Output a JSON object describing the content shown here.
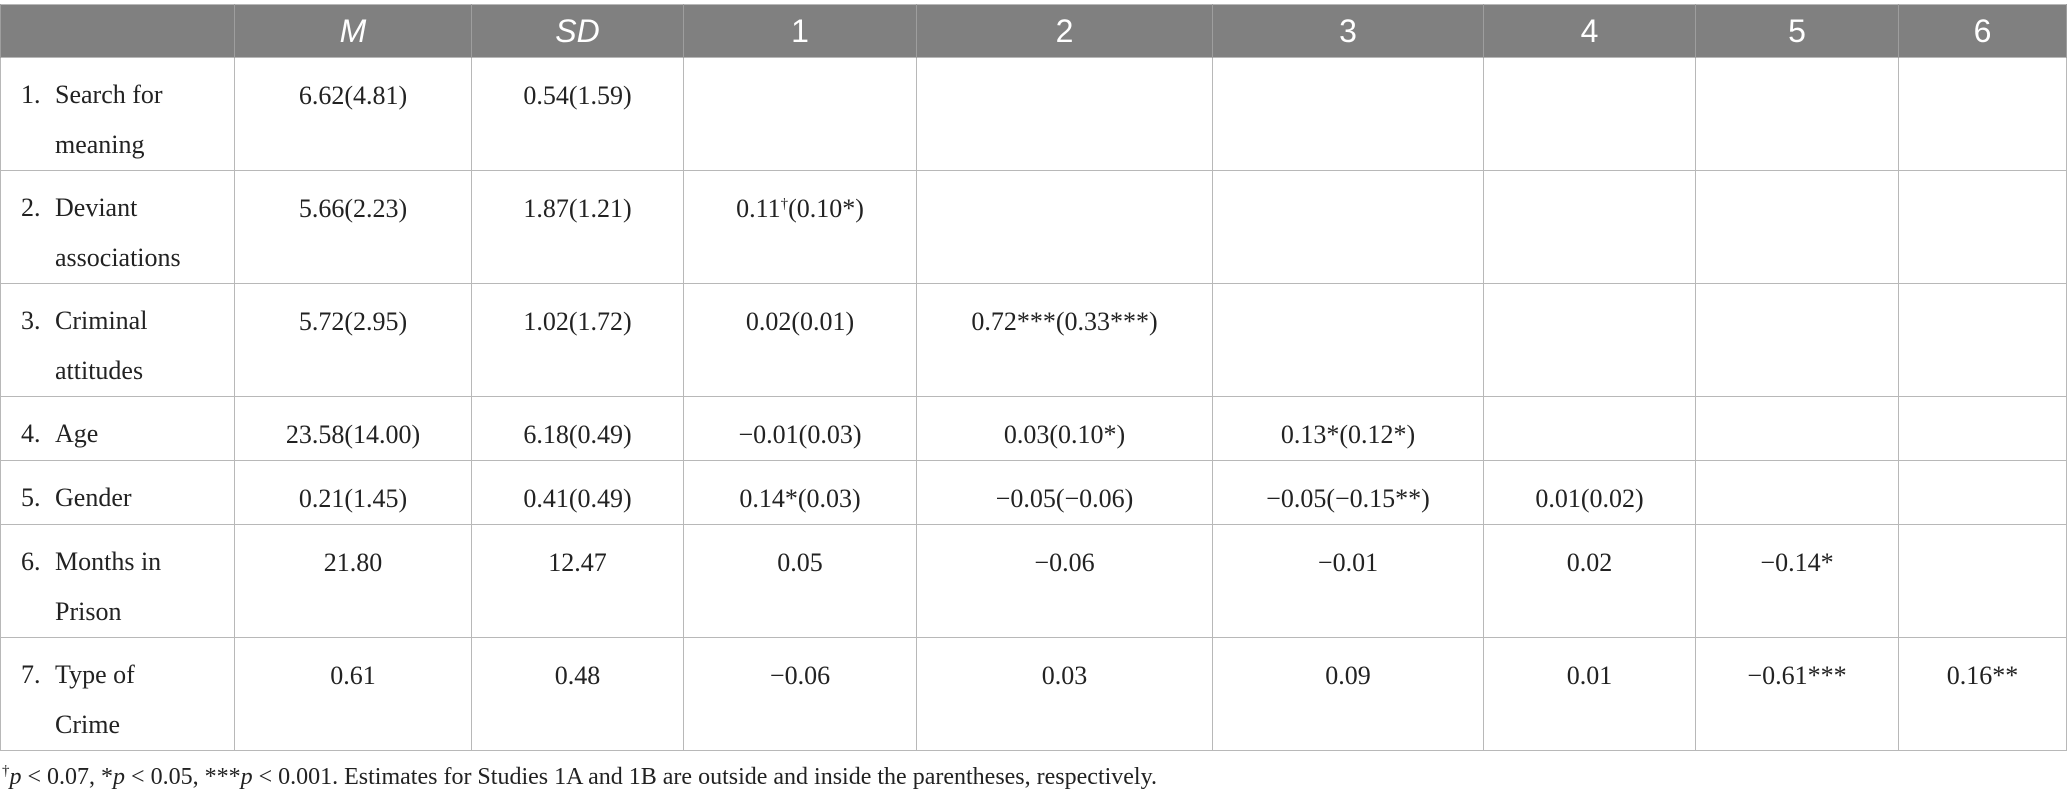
{
  "table": {
    "headers": [
      "",
      "M",
      "SD",
      "1",
      "2",
      "3",
      "4",
      "5",
      "6"
    ],
    "rows": [
      {
        "num": "1.",
        "label": "Search for meaning",
        "cells": [
          "6.62(4.81)",
          "0.54(1.59)",
          "",
          "",
          "",
          "",
          "",
          ""
        ]
      },
      {
        "num": "2.",
        "label": "Deviant associations",
        "cells": [
          "5.66(2.23)",
          "1.87(1.21)",
          "0.11†(0.10*)",
          "",
          "",
          "",
          "",
          ""
        ]
      },
      {
        "num": "3.",
        "label": "Criminal attitudes",
        "cells": [
          "5.72(2.95)",
          "1.02(1.72)",
          "0.02(0.01)",
          "0.72***(0.33***)",
          "",
          "",
          "",
          ""
        ]
      },
      {
        "num": "4.",
        "label": "Age",
        "cells": [
          "23.58(14.00)",
          "6.18(0.49)",
          "−0.01(0.03)",
          "0.03(0.10*)",
          "0.13*(0.12*)",
          "",
          "",
          ""
        ]
      },
      {
        "num": "5.",
        "label": "Gender",
        "cells": [
          "0.21(1.45)",
          "0.41(0.49)",
          "0.14*(0.03)",
          "−0.05(−0.06)",
          "−0.05(−0.15**)",
          "0.01(0.02)",
          "",
          ""
        ]
      },
      {
        "num": "6.",
        "label": "Months in Prison",
        "cells": [
          "21.80",
          "12.47",
          "0.05",
          "−0.06",
          "−0.01",
          "0.02",
          "−0.14*",
          ""
        ]
      },
      {
        "num": "7.",
        "label": "Type of Crime",
        "cells": [
          "0.61",
          "0.48",
          "−0.06",
          "0.03",
          "0.09",
          "0.01",
          "−0.61***",
          "0.16**"
        ]
      }
    ]
  },
  "note": {
    "dagger": "†",
    "p1": "p",
    "t1": " < 0.07, *",
    "p2": "p",
    "t2": " < 0.05, ***",
    "p3": "p",
    "t3": " < 0.001. Estimates for Studies 1A and 1B are outside and inside the parentheses, respectively."
  }
}
